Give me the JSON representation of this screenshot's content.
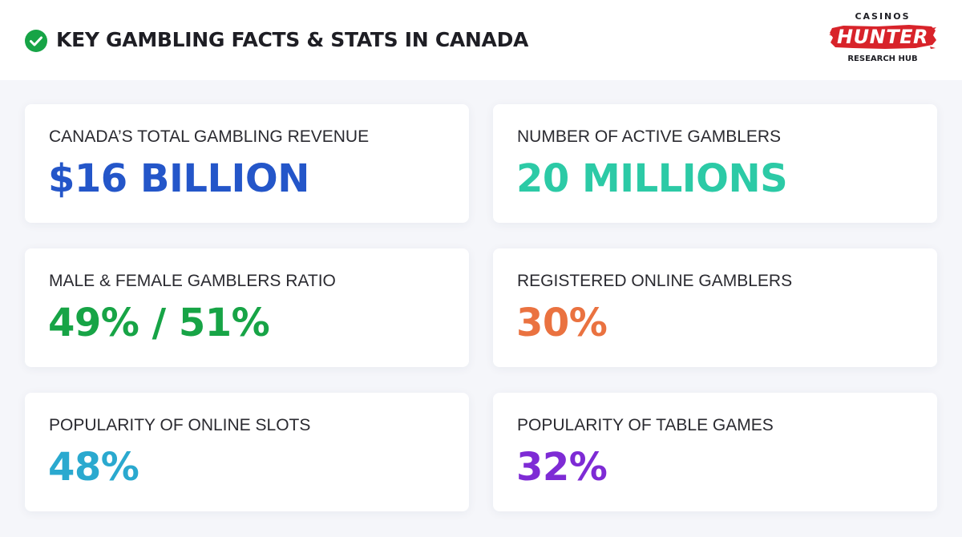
{
  "header": {
    "title": "KEY GAMBLING FACTS & STATS IN CANADA",
    "check_color": "#17a446"
  },
  "logo": {
    "top": "CASINOS",
    "main": "HUNTER",
    "sub": "RESEARCH HUB",
    "brush_color": "#d8232a"
  },
  "stats": [
    {
      "label": "CANADA’S TOTAL GAMBLING REVENUE",
      "value": "$16 BILLION",
      "color": "#2456c9"
    },
    {
      "label": "NUMBER OF ACTIVE GAMBLERS",
      "value": "20 MILLIONS",
      "color": "#2ccaa6"
    },
    {
      "label": "MALE & FEMALE GAMBLERS RATIO",
      "value": "49% / 51%",
      "color": "#17a446"
    },
    {
      "label": "REGISTERED ONLINE GAMBLERS",
      "value": "30%",
      "color": "#ea7240"
    },
    {
      "label": "POPULARITY OF ONLINE SLOTS",
      "value": "48%",
      "color": "#2aa9cf"
    },
    {
      "label": "POPULARITY OF TABLE GAMES",
      "value": "32%",
      "color": "#7e2bd5"
    }
  ]
}
